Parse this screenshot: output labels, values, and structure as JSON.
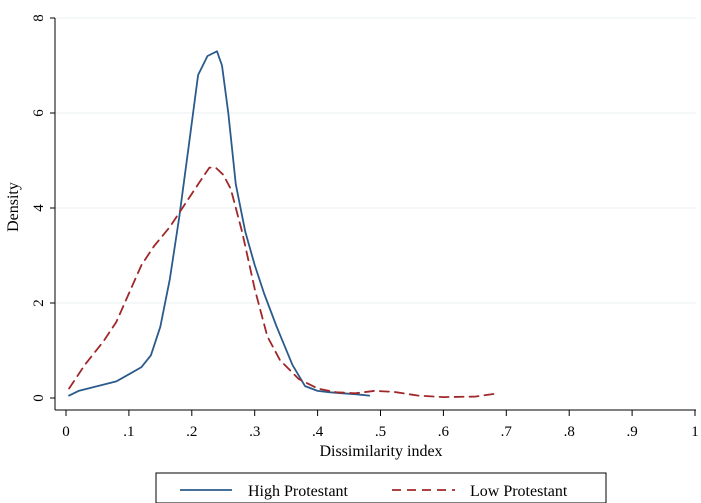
{
  "chart_data": {
    "type": "line",
    "xlabel": "Dissimilarity index",
    "ylabel": "Density",
    "xlim": [
      0,
      1
    ],
    "ylim": [
      0,
      8
    ],
    "x_ticks": [
      0,
      0.1,
      0.2,
      0.3,
      0.4,
      0.5,
      0.6,
      0.7,
      0.8,
      0.9,
      1
    ],
    "x_tick_labels": [
      "0",
      ".1",
      ".2",
      ".3",
      ".4",
      ".5",
      ".6",
      ".7",
      ".8",
      ".9",
      "1"
    ],
    "y_ticks": [
      0,
      2,
      4,
      6,
      8
    ],
    "y_tick_labels": [
      "0",
      "2",
      "4",
      "6",
      "8"
    ],
    "grid": "horizontal",
    "legend_position": "bottom",
    "series": [
      {
        "name": "High Protestant",
        "color": "#2a5b8c",
        "dash": "solid",
        "x": [
          0.005,
          0.02,
          0.05,
          0.08,
          0.1,
          0.12,
          0.135,
          0.15,
          0.165,
          0.18,
          0.195,
          0.21,
          0.225,
          0.24,
          0.248,
          0.258,
          0.27,
          0.285,
          0.3,
          0.315,
          0.335,
          0.36,
          0.38,
          0.4,
          0.42,
          0.44,
          0.46,
          0.482
        ],
        "y": [
          0.05,
          0.15,
          0.25,
          0.35,
          0.5,
          0.65,
          0.9,
          1.5,
          2.5,
          3.8,
          5.3,
          6.8,
          7.2,
          7.3,
          7.0,
          6.0,
          4.5,
          3.5,
          2.8,
          2.2,
          1.5,
          0.7,
          0.25,
          0.15,
          0.12,
          0.1,
          0.08,
          0.05
        ]
      },
      {
        "name": "Low Protestant",
        "color": "#a0282a",
        "dash": "dashed",
        "x": [
          0.005,
          0.03,
          0.06,
          0.08,
          0.1,
          0.12,
          0.14,
          0.165,
          0.19,
          0.21,
          0.228,
          0.238,
          0.25,
          0.262,
          0.28,
          0.3,
          0.32,
          0.34,
          0.37,
          0.4,
          0.43,
          0.46,
          0.49,
          0.52,
          0.56,
          0.6,
          0.65,
          0.688
        ],
        "y": [
          0.2,
          0.7,
          1.2,
          1.6,
          2.2,
          2.8,
          3.2,
          3.6,
          4.1,
          4.5,
          4.85,
          4.85,
          4.7,
          4.4,
          3.5,
          2.3,
          1.3,
          0.8,
          0.4,
          0.2,
          0.12,
          0.1,
          0.15,
          0.13,
          0.05,
          0.02,
          0.03,
          0.1
        ]
      }
    ]
  }
}
